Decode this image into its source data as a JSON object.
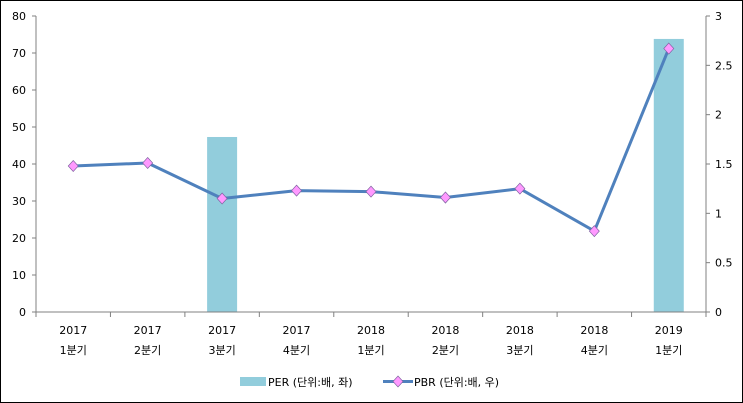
{
  "chart_data": {
    "type": "bar+line",
    "title": "",
    "categories": [
      [
        "2017",
        "1분기"
      ],
      [
        "2017",
        "2분기"
      ],
      [
        "2017",
        "3분기"
      ],
      [
        "2017",
        "4분기"
      ],
      [
        "2018",
        "1분기"
      ],
      [
        "2018",
        "2분기"
      ],
      [
        "2018",
        "3분기"
      ],
      [
        "2018",
        "4분기"
      ],
      [
        "2019",
        "1분기"
      ]
    ],
    "series": [
      {
        "name": "PER (단위:배, 좌)",
        "type": "bar",
        "axis": "left",
        "color": "#92CDDC",
        "values": [
          null,
          null,
          47.3,
          null,
          null,
          null,
          null,
          null,
          73.8
        ]
      },
      {
        "name": "PBR (단위:배, 우)",
        "type": "line",
        "axis": "right",
        "color": "#4F81BD",
        "marker_color": "#FF99FF",
        "values": [
          1.48,
          1.51,
          1.15,
          1.23,
          1.22,
          1.16,
          1.25,
          0.82,
          2.67
        ]
      }
    ],
    "y_left": {
      "min": 0,
      "max": 80,
      "ticks": [
        "0",
        "10",
        "20",
        "30",
        "40",
        "50",
        "60",
        "70",
        "80"
      ]
    },
    "y_right": {
      "min": 0,
      "max": 3,
      "ticks": [
        "0",
        "0.5",
        "1",
        "1.5",
        "2",
        "2.5",
        "3"
      ]
    },
    "grid": false,
    "legend": "bottom"
  }
}
